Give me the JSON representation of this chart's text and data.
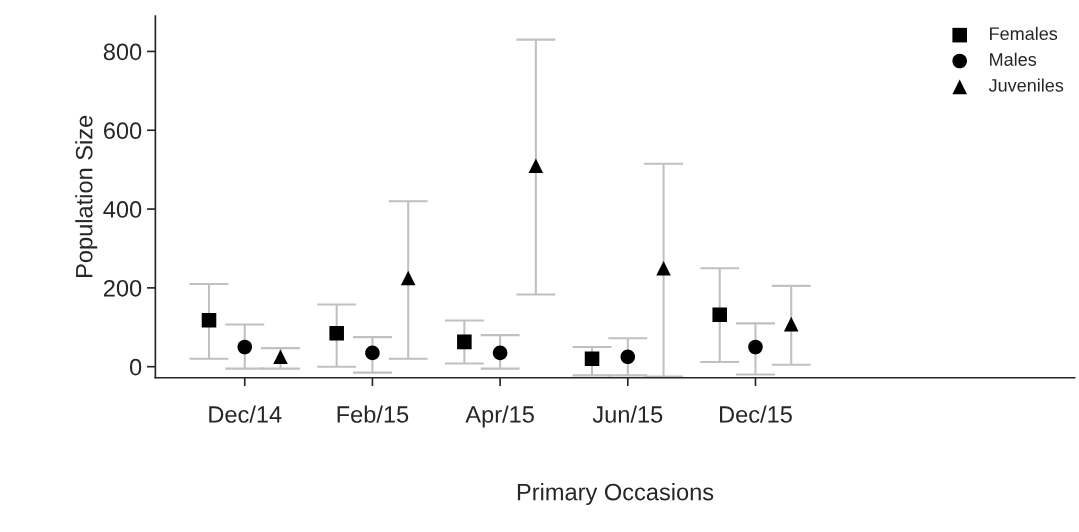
{
  "chart_data": {
    "type": "scatter",
    "xlabel": "Primary Occasions",
    "ylabel": "Population Size",
    "categories": [
      "Dec/14",
      "Feb/15",
      "Apr/15",
      "Jun/15",
      "Dec/15"
    ],
    "series": [
      {
        "name": "Females",
        "color": "#000000",
        "marker": "square",
        "values": [
          118,
          85,
          63,
          20,
          132
        ],
        "errors": [
          [
            20,
            210
          ],
          [
            0,
            158
          ],
          [
            8,
            117
          ],
          [
            -22,
            50
          ],
          [
            12,
            250
          ]
        ]
      },
      {
        "name": "Males",
        "color": "#000000",
        "marker": "circle",
        "values": [
          50,
          35,
          35,
          25,
          50
        ],
        "errors": [
          [
            -5,
            107
          ],
          [
            -15,
            75
          ],
          [
            -5,
            80
          ],
          [
            -22,
            72
          ],
          [
            -20,
            110
          ]
        ]
      },
      {
        "name": "Juveniles",
        "color": "#000000",
        "marker": "triangle",
        "values": [
          25,
          225,
          510,
          250,
          108
        ],
        "errors": [
          [
            -5,
            47
          ],
          [
            20,
            420
          ],
          [
            183,
            830
          ],
          [
            -25,
            515
          ],
          [
            5,
            205
          ]
        ]
      }
    ],
    "ylim": [
      -28,
      890
    ],
    "yticks": [
      0,
      200,
      400,
      600,
      800
    ],
    "grid": false,
    "legend": "top right"
  }
}
